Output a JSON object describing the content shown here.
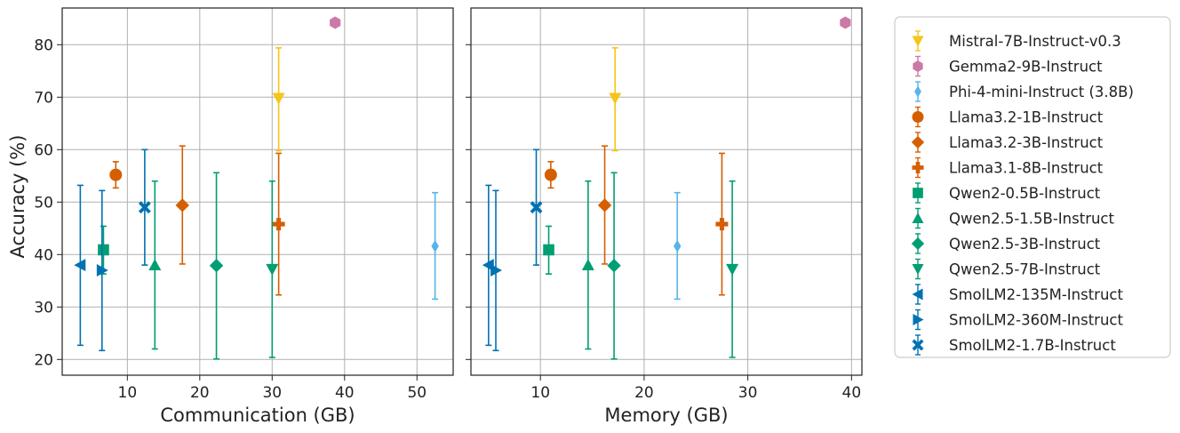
{
  "chart_data": {
    "type": "scatter",
    "ylabel": "Accuracy (%)",
    "ylim": [
      17,
      87
    ],
    "yticks": [
      20,
      30,
      40,
      50,
      60,
      70,
      80
    ],
    "grid": true,
    "legend_position": "right",
    "panels": [
      {
        "xlabel": "Communication (GB)",
        "xlim": [
          1,
          55
        ],
        "xticks": [
          10,
          20,
          30,
          40,
          50
        ],
        "show_ytick_labels": true,
        "points": [
          {
            "model": "Mistral-7B-Instruct-v0.3",
            "x": 30.9,
            "y": 69.8,
            "ylow": 59.8,
            "yhigh": 79.4
          },
          {
            "model": "Gemma2-9B-Instruct",
            "x": 38.7,
            "y": 84.2,
            "ylow": 84.2,
            "yhigh": 84.2
          },
          {
            "model": "Phi-4-mini-Instruct (3.8B)",
            "x": 52.5,
            "y": 41.6,
            "ylow": 31.5,
            "yhigh": 51.8
          },
          {
            "model": "Llama3.2-1B-Instruct",
            "x": 8.4,
            "y": 55.2,
            "ylow": 52.7,
            "yhigh": 57.7
          },
          {
            "model": "Llama3.2-3B-Instruct",
            "x": 17.6,
            "y": 49.4,
            "ylow": 38.2,
            "yhigh": 60.7
          },
          {
            "model": "Llama3.1-8B-Instruct",
            "x": 30.9,
            "y": 45.8,
            "ylow": 32.3,
            "yhigh": 59.3
          },
          {
            "model": "Qwen2-0.5B-Instruct",
            "x": 6.7,
            "y": 40.9,
            "ylow": 36.3,
            "yhigh": 45.4
          },
          {
            "model": "Qwen2.5-1.5B-Instruct",
            "x": 13.8,
            "y": 38.0,
            "ylow": 22.0,
            "yhigh": 54.0
          },
          {
            "model": "Qwen2.5-3B-Instruct",
            "x": 22.3,
            "y": 37.9,
            "ylow": 20.1,
            "yhigh": 55.6
          },
          {
            "model": "Qwen2.5-7B-Instruct",
            "x": 30.0,
            "y": 37.2,
            "ylow": 20.4,
            "yhigh": 54.0
          },
          {
            "model": "SmolLM2-135M-Instruct",
            "x": 3.5,
            "y": 38.0,
            "ylow": 22.7,
            "yhigh": 53.2
          },
          {
            "model": "SmolLM2-360M-Instruct",
            "x": 6.5,
            "y": 37.0,
            "ylow": 21.7,
            "yhigh": 52.2
          },
          {
            "model": "SmolLM2-1.7B-Instruct",
            "x": 12.4,
            "y": 49.0,
            "ylow": 38.0,
            "yhigh": 60.0
          }
        ]
      },
      {
        "xlabel": "Memory (GB)",
        "xlim": [
          3.3,
          41.0
        ],
        "xticks": [
          10,
          20,
          30,
          40
        ],
        "show_ytick_labels": false,
        "points": [
          {
            "model": "Mistral-7B-Instruct-v0.3",
            "x": 17.2,
            "y": 69.8,
            "ylow": 59.8,
            "yhigh": 79.4
          },
          {
            "model": "Gemma2-9B-Instruct",
            "x": 39.4,
            "y": 84.2,
            "ylow": 84.2,
            "yhigh": 84.2
          },
          {
            "model": "Phi-4-mini-Instruct (3.8B)",
            "x": 23.2,
            "y": 41.6,
            "ylow": 31.5,
            "yhigh": 51.8
          },
          {
            "model": "Llama3.2-1B-Instruct",
            "x": 11.0,
            "y": 55.2,
            "ylow": 52.7,
            "yhigh": 57.7
          },
          {
            "model": "Llama3.2-3B-Instruct",
            "x": 16.2,
            "y": 49.4,
            "ylow": 38.2,
            "yhigh": 60.7
          },
          {
            "model": "Llama3.1-8B-Instruct",
            "x": 27.5,
            "y": 45.8,
            "ylow": 32.3,
            "yhigh": 59.3
          },
          {
            "model": "Qwen2-0.5B-Instruct",
            "x": 10.8,
            "y": 40.9,
            "ylow": 36.3,
            "yhigh": 45.4
          },
          {
            "model": "Qwen2.5-1.5B-Instruct",
            "x": 14.6,
            "y": 38.0,
            "ylow": 22.0,
            "yhigh": 54.0
          },
          {
            "model": "Qwen2.5-3B-Instruct",
            "x": 17.1,
            "y": 37.9,
            "ylow": 20.1,
            "yhigh": 55.6
          },
          {
            "model": "Qwen2.5-7B-Instruct",
            "x": 28.5,
            "y": 37.2,
            "ylow": 20.4,
            "yhigh": 54.0
          },
          {
            "model": "SmolLM2-135M-Instruct",
            "x": 5.0,
            "y": 38.0,
            "ylow": 22.7,
            "yhigh": 53.2
          },
          {
            "model": "SmolLM2-360M-Instruct",
            "x": 5.7,
            "y": 37.0,
            "ylow": 21.7,
            "yhigh": 52.2
          },
          {
            "model": "SmolLM2-1.7B-Instruct",
            "x": 9.6,
            "y": 49.0,
            "ylow": 38.0,
            "yhigh": 60.0
          }
        ]
      }
    ],
    "series": [
      {
        "name": "Mistral-7B-Instruct-v0.3",
        "color": "#f5c518",
        "marker": "triangle-down"
      },
      {
        "name": "Gemma2-9B-Instruct",
        "color": "#cc79a7",
        "marker": "hexagon"
      },
      {
        "name": "Phi-4-mini-Instruct (3.8B)",
        "color": "#56b4e9",
        "marker": "thin-diamond"
      },
      {
        "name": "Llama3.2-1B-Instruct",
        "color": "#d55e00",
        "marker": "circle"
      },
      {
        "name": "Llama3.2-3B-Instruct",
        "color": "#d55e00",
        "marker": "diamond"
      },
      {
        "name": "Llama3.1-8B-Instruct",
        "color": "#d55e00",
        "marker": "plus"
      },
      {
        "name": "Qwen2-0.5B-Instruct",
        "color": "#009e73",
        "marker": "square"
      },
      {
        "name": "Qwen2.5-1.5B-Instruct",
        "color": "#009e73",
        "marker": "triangle-up"
      },
      {
        "name": "Qwen2.5-3B-Instruct",
        "color": "#009e73",
        "marker": "diamond"
      },
      {
        "name": "Qwen2.5-7B-Instruct",
        "color": "#009e73",
        "marker": "triangle-down"
      },
      {
        "name": "SmolLM2-135M-Instruct",
        "color": "#0072b2",
        "marker": "triangle-left"
      },
      {
        "name": "SmolLM2-360M-Instruct",
        "color": "#0072b2",
        "marker": "triangle-right"
      },
      {
        "name": "SmolLM2-1.7B-Instruct",
        "color": "#0072b2",
        "marker": "x"
      }
    ]
  }
}
